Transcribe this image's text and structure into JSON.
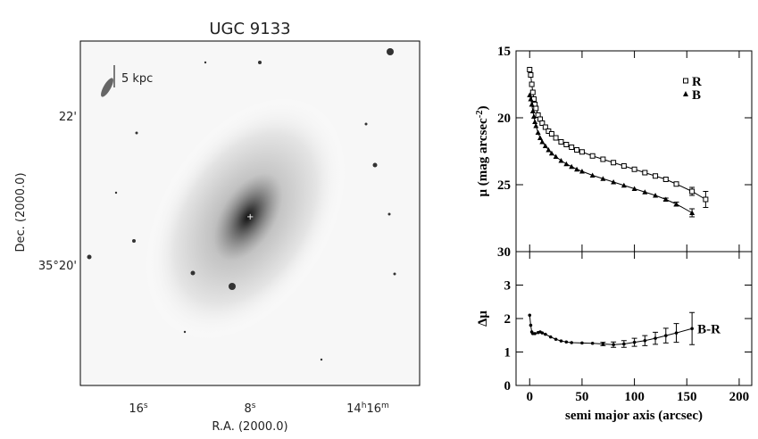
{
  "image": {
    "title": "UGC 9133",
    "xlabel": "R.A. (2000.0)",
    "ylabel": "Dec. (2000.0)",
    "ra_ticks": [
      [
        "16",
        "s"
      ],
      [
        "8",
        "s"
      ],
      [
        "14",
        "h",
        "16",
        "m"
      ]
    ],
    "dec_ticks": [
      [
        "22'"
      ],
      [
        "35°20'"
      ]
    ],
    "scale_label": "5 kpc"
  },
  "chart_data": [
    {
      "type": "scatter",
      "ylabel": [
        "μ (mag arcsec",
        "-2",
        ")"
      ],
      "xlim": [
        -13,
        212
      ],
      "ylim": [
        15,
        30
      ],
      "y_inverted": true,
      "yticks": [
        15,
        20,
        25,
        30
      ],
      "legend": "top-right",
      "series": [
        {
          "name": "R",
          "marker": "square",
          "color": "#000000",
          "x": [
            0,
            1,
            2,
            3,
            4,
            5,
            6,
            8,
            10,
            12,
            15,
            18,
            21,
            25,
            30,
            35,
            40,
            45,
            50,
            60,
            70,
            80,
            90,
            100,
            110,
            120,
            130,
            140,
            155,
            168
          ],
          "values": [
            16.4,
            16.8,
            17.5,
            18.1,
            18.6,
            19.0,
            19.3,
            19.8,
            20.1,
            20.4,
            20.7,
            21.0,
            21.2,
            21.5,
            21.8,
            22.0,
            22.2,
            22.4,
            22.55,
            22.85,
            23.1,
            23.35,
            23.6,
            23.85,
            24.1,
            24.35,
            24.6,
            24.95,
            25.5,
            26.1
          ],
          "errors": [
            null,
            null,
            null,
            null,
            null,
            null,
            null,
            null,
            null,
            null,
            null,
            null,
            null,
            null,
            null,
            null,
            null,
            null,
            null,
            null,
            null,
            null,
            null,
            null,
            0.1,
            0.1,
            0.1,
            0.15,
            0.3,
            0.6
          ]
        },
        {
          "name": "B",
          "marker": "triangle",
          "color": "#000000",
          "x": [
            0,
            1,
            2,
            3,
            4,
            5,
            6,
            8,
            10,
            12,
            15,
            18,
            21,
            25,
            30,
            35,
            40,
            45,
            50,
            60,
            70,
            80,
            90,
            100,
            110,
            120,
            130,
            140,
            155
          ],
          "values": [
            18.3,
            18.6,
            19.0,
            19.5,
            19.9,
            20.3,
            20.6,
            21.1,
            21.5,
            21.8,
            22.1,
            22.4,
            22.65,
            22.9,
            23.2,
            23.45,
            23.65,
            23.85,
            24.0,
            24.3,
            24.55,
            24.8,
            25.05,
            25.3,
            25.55,
            25.8,
            26.1,
            26.45,
            27.1
          ],
          "errors": [
            null,
            null,
            null,
            null,
            null,
            null,
            null,
            null,
            null,
            null,
            null,
            null,
            null,
            null,
            null,
            null,
            null,
            null,
            null,
            null,
            null,
            null,
            null,
            null,
            null,
            null,
            0.1,
            0.15,
            0.3
          ]
        }
      ]
    },
    {
      "type": "scatter",
      "ylabel": "Δμ",
      "xlabel": "semi major axis (arcsec)",
      "xlim": [
        -13,
        212
      ],
      "ylim": [
        0,
        4
      ],
      "xticks": [
        0,
        50,
        100,
        150,
        200
      ],
      "yticks": [
        0,
        1,
        2,
        3
      ],
      "annotation": "B-R",
      "series": [
        {
          "name": null,
          "marker": "dot",
          "color": "#000000",
          "x": [
            0,
            1,
            2,
            3,
            5,
            8,
            10,
            12,
            15,
            20,
            25,
            30,
            35,
            40,
            50,
            60,
            70,
            80,
            90,
            100,
            110,
            120,
            130,
            140,
            155
          ],
          "values": [
            2.1,
            1.8,
            1.6,
            1.55,
            1.55,
            1.58,
            1.6,
            1.57,
            1.53,
            1.45,
            1.38,
            1.33,
            1.3,
            1.28,
            1.27,
            1.26,
            1.24,
            1.22,
            1.24,
            1.29,
            1.34,
            1.41,
            1.49,
            1.57,
            1.7
          ],
          "errors": [
            null,
            null,
            null,
            null,
            null,
            null,
            null,
            null,
            null,
            null,
            null,
            null,
            null,
            null,
            null,
            null,
            0.05,
            0.08,
            0.1,
            0.12,
            0.15,
            0.18,
            0.22,
            0.28,
            0.48
          ]
        }
      ]
    }
  ]
}
